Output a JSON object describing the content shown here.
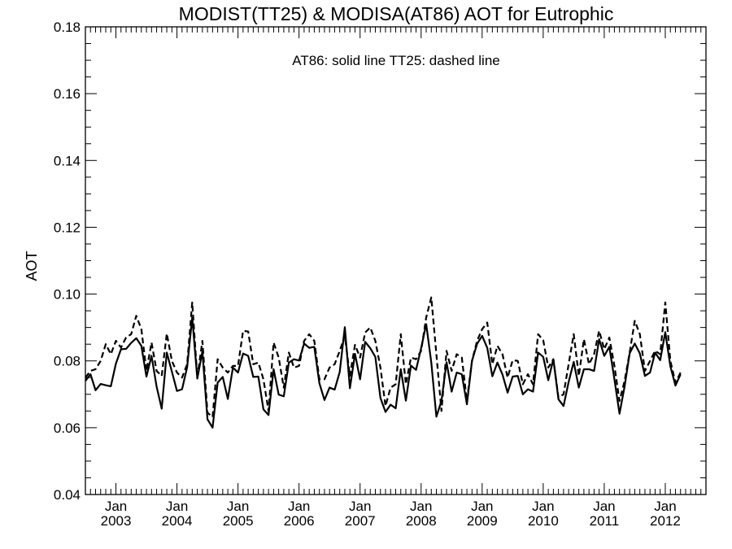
{
  "chart_data": {
    "type": "line",
    "title": "MODIST(TT25) & MODISA(AT86)  AOT for Eutrophic",
    "annotation": "AT86: solid line   TT25: dashed line",
    "ylabel": "AOT",
    "xlabel": "",
    "ylim": [
      0.04,
      0.18
    ],
    "xlim": [
      "2002-07",
      "2012-09"
    ],
    "yticks": [
      "0.04",
      "0.06",
      "0.08",
      "0.10",
      "0.12",
      "0.14",
      "0.16",
      "0.18"
    ],
    "xticks": [
      {
        "month": "Jan",
        "year": "2003",
        "date": "2003-01"
      },
      {
        "month": "Jan",
        "year": "2004",
        "date": "2004-01"
      },
      {
        "month": "Jan",
        "year": "2005",
        "date": "2005-01"
      },
      {
        "month": "Jan",
        "year": "2006",
        "date": "2006-01"
      },
      {
        "month": "Jan",
        "year": "2007",
        "date": "2007-01"
      },
      {
        "month": "Jan",
        "year": "2008",
        "date": "2008-01"
      },
      {
        "month": "Jan",
        "year": "2009",
        "date": "2009-01"
      },
      {
        "month": "Jan",
        "year": "2010",
        "date": "2010-01"
      },
      {
        "month": "Jan",
        "year": "2011",
        "date": "2011-01"
      },
      {
        "month": "Jan",
        "year": "2012",
        "date": "2012-01"
      }
    ],
    "grid": false,
    "start": "2002-07",
    "frequency": "monthly",
    "series": [
      {
        "name": "AT86",
        "style": "solid",
        "color": "#000000",
        "values": [
          0.074,
          0.076,
          0.0712,
          0.0731,
          0.0727,
          0.0724,
          0.0792,
          0.0835,
          0.0836,
          0.0854,
          0.0868,
          0.0845,
          0.0753,
          0.0815,
          0.0723,
          0.0657,
          0.0825,
          0.0768,
          0.071,
          0.0715,
          0.0781,
          0.093,
          0.0747,
          0.0828,
          0.0625,
          0.06,
          0.0735,
          0.0752,
          0.0686,
          0.078,
          0.0765,
          0.0822,
          0.0815,
          0.0752,
          0.0753,
          0.0655,
          0.0638,
          0.0775,
          0.0699,
          0.0694,
          0.0795,
          0.0805,
          0.0801,
          0.0852,
          0.0839,
          0.0842,
          0.0733,
          0.0683,
          0.072,
          0.0714,
          0.0767,
          0.0901,
          0.0718,
          0.0821,
          0.0745,
          0.0857,
          0.0838,
          0.0812,
          0.0689,
          0.0647,
          0.0669,
          0.0658,
          0.0775,
          0.0681,
          0.0786,
          0.0773,
          0.0838,
          0.091,
          0.0795,
          0.0633,
          0.068,
          0.0796,
          0.0708,
          0.0765,
          0.076,
          0.067,
          0.08,
          0.0851,
          0.0875,
          0.0839,
          0.0754,
          0.0795,
          0.0759,
          0.0705,
          0.0753,
          0.0755,
          0.07,
          0.0715,
          0.0708,
          0.0825,
          0.0812,
          0.0742,
          0.0805,
          0.0685,
          0.0665,
          0.0737,
          0.0797,
          0.072,
          0.0775,
          0.0775,
          0.077,
          0.0865,
          0.0815,
          0.0842,
          0.0745,
          0.0642,
          0.0723,
          0.0823,
          0.0852,
          0.0822,
          0.0755,
          0.0765,
          0.0825,
          0.0802,
          0.0886,
          0.0784,
          0.0726,
          0.076
        ]
      },
      {
        "name": "TT25",
        "style": "dashed",
        "color": "#000000",
        "values": [
          0.075,
          0.077,
          0.0775,
          0.08,
          0.085,
          0.082,
          0.086,
          0.084,
          0.087,
          0.088,
          0.0935,
          0.0895,
          0.077,
          0.0855,
          0.077,
          0.0755,
          0.0882,
          0.08,
          0.0765,
          0.075,
          0.079,
          0.0975,
          0.075,
          0.086,
          0.0645,
          0.0632,
          0.0805,
          0.078,
          0.0765,
          0.0785,
          0.0785,
          0.089,
          0.0888,
          0.079,
          0.0795,
          0.0745,
          0.065,
          0.0855,
          0.081,
          0.072,
          0.0825,
          0.078,
          0.0785,
          0.086,
          0.088,
          0.086,
          0.0745,
          0.0745,
          0.078,
          0.079,
          0.083,
          0.0875,
          0.0755,
          0.0848,
          0.081,
          0.0885,
          0.09,
          0.086,
          0.078,
          0.0665,
          0.072,
          0.073,
          0.088,
          0.073,
          0.081,
          0.0805,
          0.083,
          0.093,
          0.099,
          0.082,
          0.065,
          0.083,
          0.077,
          0.082,
          0.081,
          0.068,
          0.08,
          0.086,
          0.0895,
          0.0915,
          0.079,
          0.0845,
          0.082,
          0.075,
          0.0802,
          0.08,
          0.073,
          0.076,
          0.073,
          0.088,
          0.0862,
          0.078,
          0.0805,
          0.069,
          0.07,
          0.079,
          0.088,
          0.0755,
          0.0865,
          0.079,
          0.082,
          0.089,
          0.0835,
          0.087,
          0.0785,
          0.068,
          0.074,
          0.0825,
          0.092,
          0.088,
          0.077,
          0.08,
          0.083,
          0.082,
          0.0975,
          0.08,
          0.0735,
          0.0765
        ]
      }
    ]
  }
}
